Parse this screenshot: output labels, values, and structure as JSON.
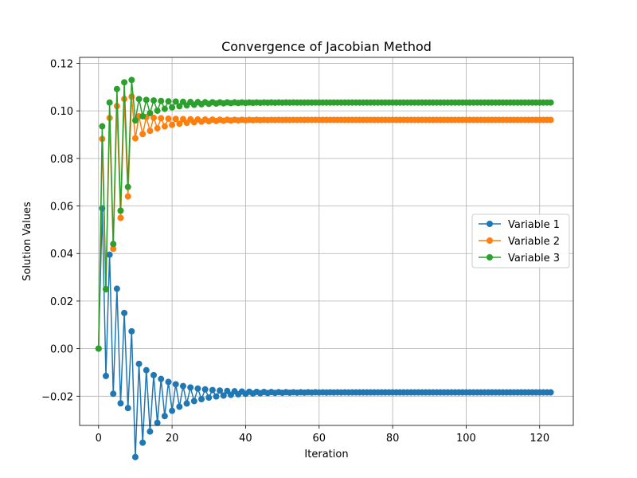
{
  "chart_data": {
    "type": "line",
    "title": "Convergence of Jacobian Method",
    "xlabel": "Iteration",
    "ylabel": "Solution Values",
    "xlim": [
      -5.15,
      129.15
    ],
    "ylim": [
      -0.0323,
      0.1225
    ],
    "xticks": [
      "0",
      "20",
      "40",
      "60",
      "80",
      "100",
      "120"
    ],
    "yticks": [
      "−0.02",
      "0.00",
      "0.02",
      "0.04",
      "0.06",
      "0.08",
      "0.10",
      "0.12"
    ],
    "grid": true,
    "legend_position": "center-right",
    "x": {
      "start": 0,
      "end": 123
    },
    "series": [
      {
        "name": "Variable 1",
        "color": "#1f77b4",
        "initial": 0,
        "final": -0.0184,
        "sample_values": {
          "1": 0.059,
          "2": -0.0115,
          "3": 0.0395,
          "4": -0.019,
          "5": 0.0252,
          "6": -0.023,
          "7": 0.015,
          "8": -0.025,
          "9": 0.0073
        }
      },
      {
        "name": "Variable 2",
        "color": "#ff7f0e",
        "initial": 0,
        "final": 0.0962,
        "sample_values": {
          "1": 0.0882,
          "2": 0.025,
          "3": 0.097,
          "4": 0.042,
          "5": 0.102,
          "6": 0.055,
          "7": 0.105,
          "8": 0.064,
          "9": 0.106
        }
      },
      {
        "name": "Variable 3",
        "color": "#2ca02c",
        "initial": 0,
        "final": 0.1035,
        "sample_values": {
          "1": 0.0935,
          "2": 0.025,
          "3": 0.1035,
          "4": 0.044,
          "5": 0.1092,
          "6": 0.058,
          "7": 0.112,
          "8": 0.068,
          "9": 0.113
        }
      }
    ]
  }
}
